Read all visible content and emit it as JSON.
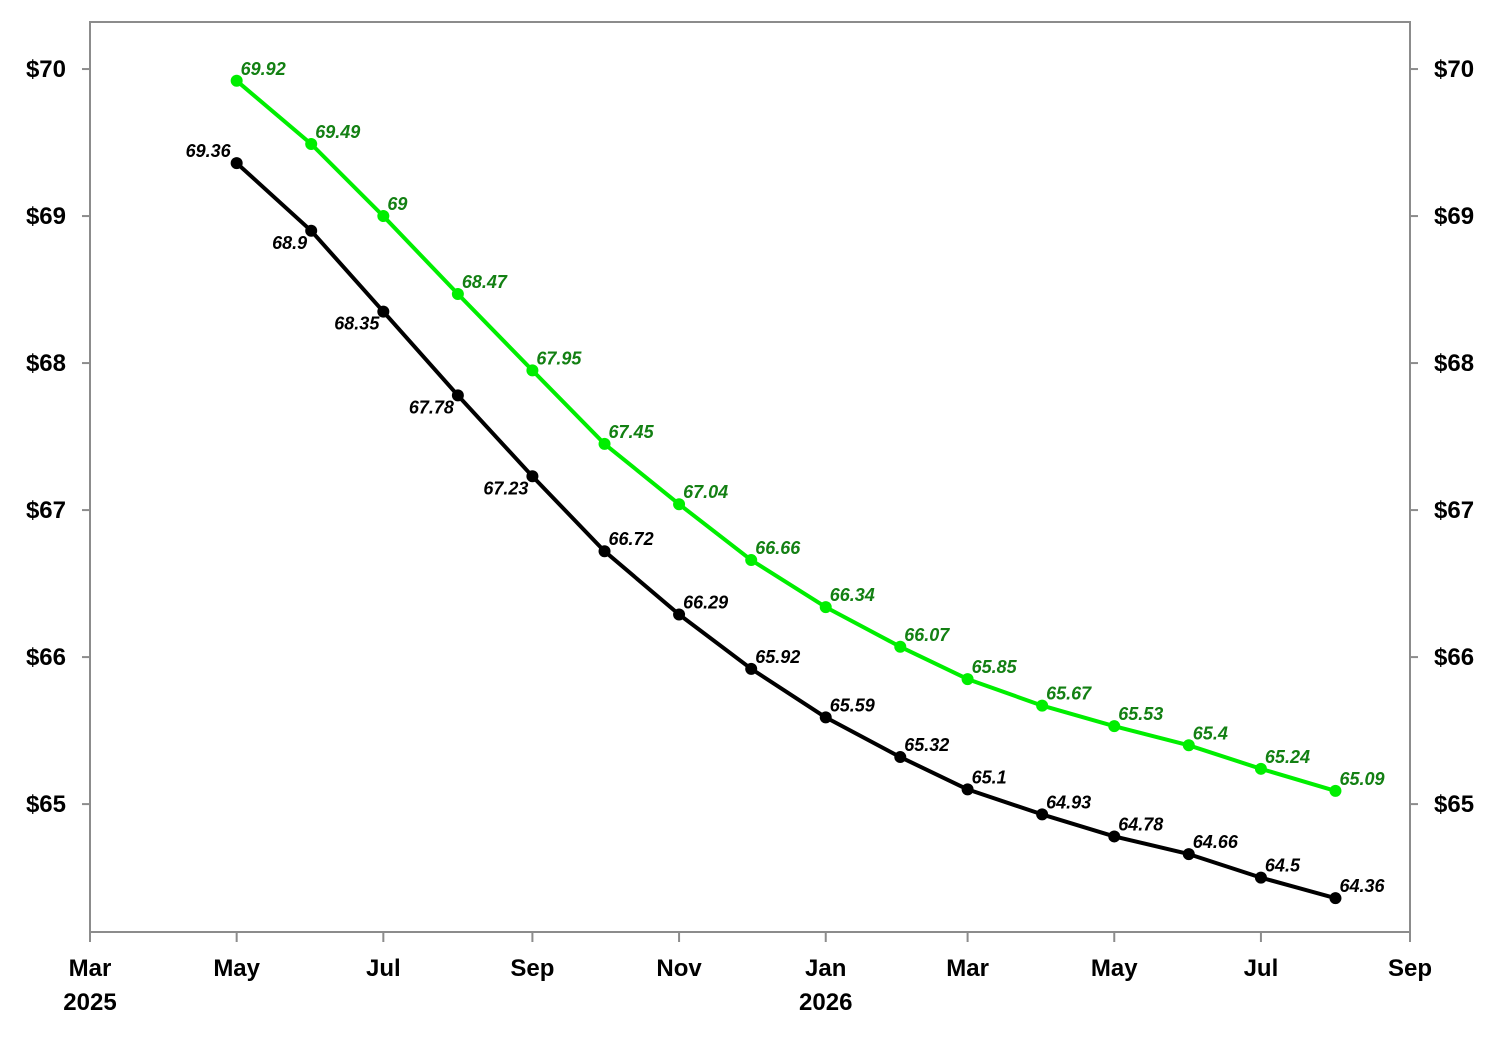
{
  "chart_data": {
    "type": "line",
    "title": "",
    "xlabel": "",
    "ylabel": "",
    "y_ticks": [
      {
        "value": 65,
        "label": "$65"
      },
      {
        "value": 66,
        "label": "$66"
      },
      {
        "value": 67,
        "label": "$67"
      },
      {
        "value": 68,
        "label": "$68"
      },
      {
        "value": 69,
        "label": "$69"
      },
      {
        "value": 70,
        "label": "$70"
      }
    ],
    "x_ticks": [
      {
        "date": "2025-03-01",
        "label": "Mar",
        "year_label": "2025"
      },
      {
        "date": "2025-05-01",
        "label": "May",
        "year_label": ""
      },
      {
        "date": "2025-07-01",
        "label": "Jul",
        "year_label": ""
      },
      {
        "date": "2025-09-01",
        "label": "Sep",
        "year_label": ""
      },
      {
        "date": "2025-11-01",
        "label": "Nov",
        "year_label": ""
      },
      {
        "date": "2026-01-01",
        "label": "Jan",
        "year_label": "2026"
      },
      {
        "date": "2026-03-01",
        "label": "Mar",
        "year_label": ""
      },
      {
        "date": "2026-05-01",
        "label": "May",
        "year_label": ""
      },
      {
        "date": "2026-07-01",
        "label": "Jul",
        "year_label": ""
      },
      {
        "date": "2026-09-01",
        "label": "Sep",
        "year_label": ""
      }
    ],
    "xlim": [
      "2025-03-01",
      "2026-09-01"
    ],
    "ylim": [
      64.13,
      70.32
    ],
    "grid": false,
    "legend": "none",
    "dual_y_axis": true,
    "x": [
      "2025-05-01",
      "2025-06-01",
      "2025-07-01",
      "2025-08-01",
      "2025-09-01",
      "2025-10-01",
      "2025-11-01",
      "2025-12-01",
      "2026-01-01",
      "2026-02-01",
      "2026-03-01",
      "2026-04-01",
      "2026-05-01",
      "2026-06-01",
      "2026-07-01",
      "2026-08-01"
    ],
    "series": [
      {
        "color": "#00ee00",
        "label_color": "#138013",
        "label_side": "right",
        "values": [
          69.92,
          69.49,
          69,
          68.47,
          67.95,
          67.45,
          67.04,
          66.66,
          66.34,
          66.07,
          65.85,
          65.67,
          65.53,
          65.4,
          65.24,
          65.09
        ]
      },
      {
        "color": "#000000",
        "label_color": "#000000",
        "label_side": "left-then-right",
        "values": [
          69.36,
          68.9,
          68.35,
          67.78,
          67.23,
          66.72,
          66.29,
          65.92,
          65.59,
          65.32,
          65.1,
          64.93,
          64.78,
          64.66,
          64.5,
          64.36
        ]
      }
    ]
  }
}
